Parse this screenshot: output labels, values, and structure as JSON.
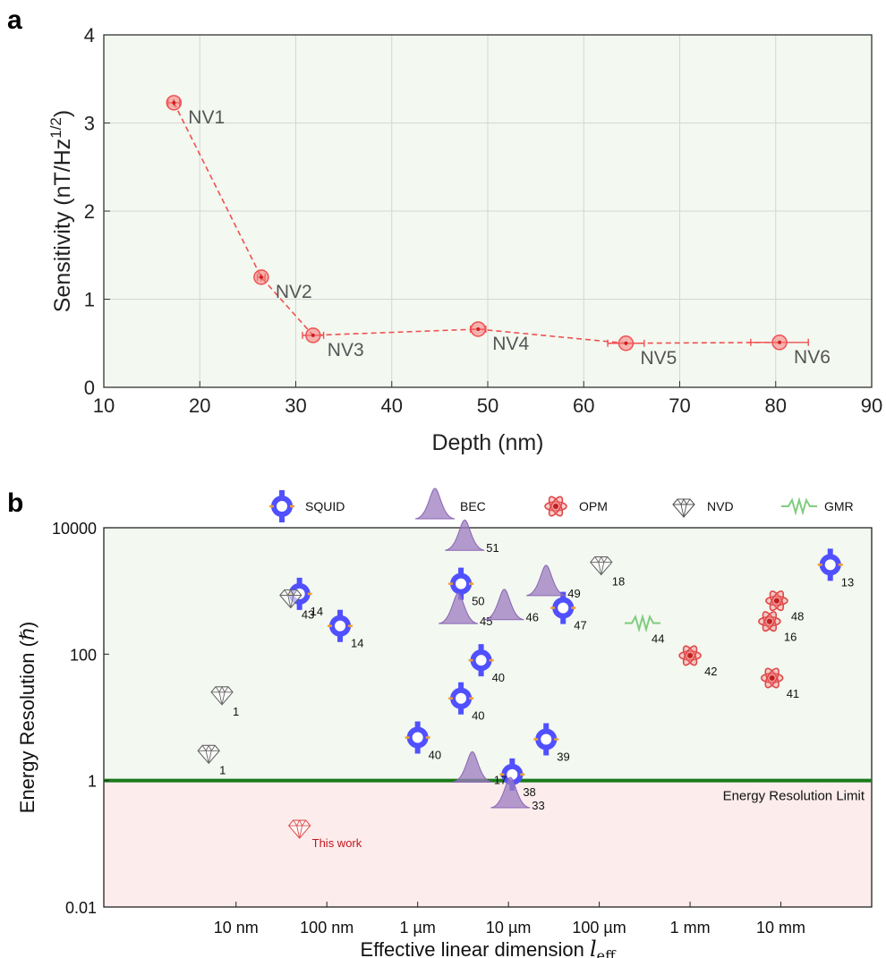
{
  "chart_data": [
    {
      "panel": "a",
      "type": "line",
      "xlabel": "Depth (nm)",
      "ylabel": "Sensitivity (nT/Hz",
      "ylabel_sup": "1/2",
      "ylabel_close": ")",
      "xlim": [
        10,
        90
      ],
      "ylim": [
        0,
        4
      ],
      "xticks": [
        10,
        20,
        30,
        40,
        50,
        60,
        70,
        80,
        90
      ],
      "yticks": [
        0,
        1,
        2,
        3,
        4
      ],
      "grid": true,
      "color": "#f05050",
      "points": [
        {
          "label": "NV1",
          "x": 17.3,
          "y": 3.23,
          "xerr": 0.6,
          "yerr": 0.04
        },
        {
          "label": "NV2",
          "x": 26.4,
          "y": 1.25,
          "xerr": 0.4,
          "yerr": 0.04
        },
        {
          "label": "NV3",
          "x": 31.8,
          "y": 0.59,
          "xerr": 1.1,
          "yerr": 0.02
        },
        {
          "label": "NV4",
          "x": 49.0,
          "y": 0.66,
          "xerr": 0.8,
          "yerr": 0.02
        },
        {
          "label": "NV5",
          "x": 64.4,
          "y": 0.5,
          "xerr": 1.9,
          "yerr": 0.02
        },
        {
          "label": "NV6",
          "x": 80.4,
          "y": 0.51,
          "xerr": 3.0,
          "yerr": 0.02
        }
      ]
    },
    {
      "panel": "b",
      "type": "scatter",
      "xlabel": "Effective linear dimension ",
      "xlabel_math": "l",
      "xlabel_sub": "eff",
      "ylabel": "Energy Resolution (ℏ)",
      "xscale": "log",
      "yscale": "log",
      "xlim_m": [
        3.5e-10,
        0.1
      ],
      "ylim": [
        0.01,
        10000
      ],
      "xticks": [
        {
          "value_m": 1e-08,
          "label": "10 nm"
        },
        {
          "value_m": 1e-07,
          "label": "100 nm"
        },
        {
          "value_m": 1e-06,
          "label": "1 µm"
        },
        {
          "value_m": 1e-05,
          "label": "10 µm"
        },
        {
          "value_m": 0.0001,
          "label": "100 µm"
        },
        {
          "value_m": 0.001,
          "label": "1 mm"
        },
        {
          "value_m": 0.01,
          "label": "10 mm"
        }
      ],
      "yticks": [
        {
          "value": 0.01,
          "label": "0.01"
        },
        {
          "value": 1,
          "label": "1"
        },
        {
          "value": 100,
          "label": "100"
        },
        {
          "value": 10000,
          "label": "10000"
        }
      ],
      "limit_line": {
        "value": 1,
        "label": "Energy Resolution Limit",
        "color": "#1a7a1a"
      },
      "region_colors": {
        "above": "#f3f8f0",
        "below": "#fdecec"
      },
      "legend": [
        {
          "key": "SQUID",
          "label": "SQUID",
          "icon": "squid-ring-icon",
          "color": "#5050ff"
        },
        {
          "key": "BEC",
          "label": "BEC",
          "icon": "bec-peak-icon",
          "color": "#9c7cc0"
        },
        {
          "key": "OPM",
          "label": "OPM",
          "icon": "atom-icon",
          "color": "#e04848"
        },
        {
          "key": "NVD",
          "label": "NVD",
          "icon": "diamond-icon",
          "color": "#888888"
        },
        {
          "key": "GMR",
          "label": "GMR",
          "icon": "zigzag-icon",
          "color": "#80cc80"
        }
      ],
      "points": [
        {
          "type": "SQUID",
          "x_m": 5e-08,
          "y": 900,
          "ref": "14",
          "err": true
        },
        {
          "type": "SQUID",
          "x_m": 1.4e-07,
          "y": 280,
          "ref": "14",
          "err": true
        },
        {
          "type": "SQUID",
          "x_m": 3e-06,
          "y": 1300,
          "ref": "50",
          "err": true
        },
        {
          "type": "SQUID",
          "x_m": 5e-06,
          "y": 80,
          "ref": "40",
          "err": true
        },
        {
          "type": "SQUID",
          "x_m": 3e-06,
          "y": 20,
          "ref": "40",
          "err": true
        },
        {
          "type": "SQUID",
          "x_m": 1e-06,
          "y": 4.8,
          "ref": "40",
          "err": true
        },
        {
          "type": "SQUID",
          "x_m": 2.6e-05,
          "y": 4.5,
          "ref": "39",
          "err": true
        },
        {
          "type": "SQUID",
          "x_m": 1.1e-05,
          "y": 1.25,
          "ref": "38",
          "err": true
        },
        {
          "type": "SQUID",
          "x_m": 4e-05,
          "y": 540,
          "ref": "47",
          "err": true
        },
        {
          "type": "SQUID",
          "x_m": 0.035,
          "y": 2600,
          "ref": "13",
          "err": true
        },
        {
          "type": "BEC",
          "x_m": 3.3e-06,
          "y": 6500,
          "ref": "51"
        },
        {
          "type": "BEC",
          "x_m": 2.8e-06,
          "y": 450,
          "ref": "45"
        },
        {
          "type": "BEC",
          "x_m": 9e-06,
          "y": 520,
          "ref": "46"
        },
        {
          "type": "BEC",
          "x_m": 2.6e-05,
          "y": 1250,
          "ref": "49"
        },
        {
          "type": "BEC",
          "x_m": 4e-06,
          "y": 1.4,
          "ref": "17"
        },
        {
          "type": "BEC",
          "x_m": 1.05e-05,
          "y": 0.55,
          "ref": "33"
        },
        {
          "type": "OPM",
          "x_m": 0.009,
          "y": 700,
          "ref": "48"
        },
        {
          "type": "OPM",
          "x_m": 0.0075,
          "y": 330,
          "ref": "16"
        },
        {
          "type": "OPM",
          "x_m": 0.001,
          "y": 95,
          "ref": "42"
        },
        {
          "type": "OPM",
          "x_m": 0.008,
          "y": 42,
          "ref": "41"
        },
        {
          "type": "NVD",
          "x_m": 0.000105,
          "y": 2500,
          "ref": "18"
        },
        {
          "type": "NVD",
          "x_m": 4e-08,
          "y": 750,
          "ref": "43"
        },
        {
          "type": "NVD",
          "x_m": 7e-09,
          "y": 22,
          "ref": "1"
        },
        {
          "type": "NVD",
          "x_m": 5e-09,
          "y": 2.6,
          "ref": "1"
        },
        {
          "type": "GMR",
          "x_m": 0.0003,
          "y": 310,
          "ref": "44"
        },
        {
          "type": "THIS",
          "x_m": 5e-08,
          "y": 0.17,
          "ref": "This work"
        }
      ]
    }
  ]
}
